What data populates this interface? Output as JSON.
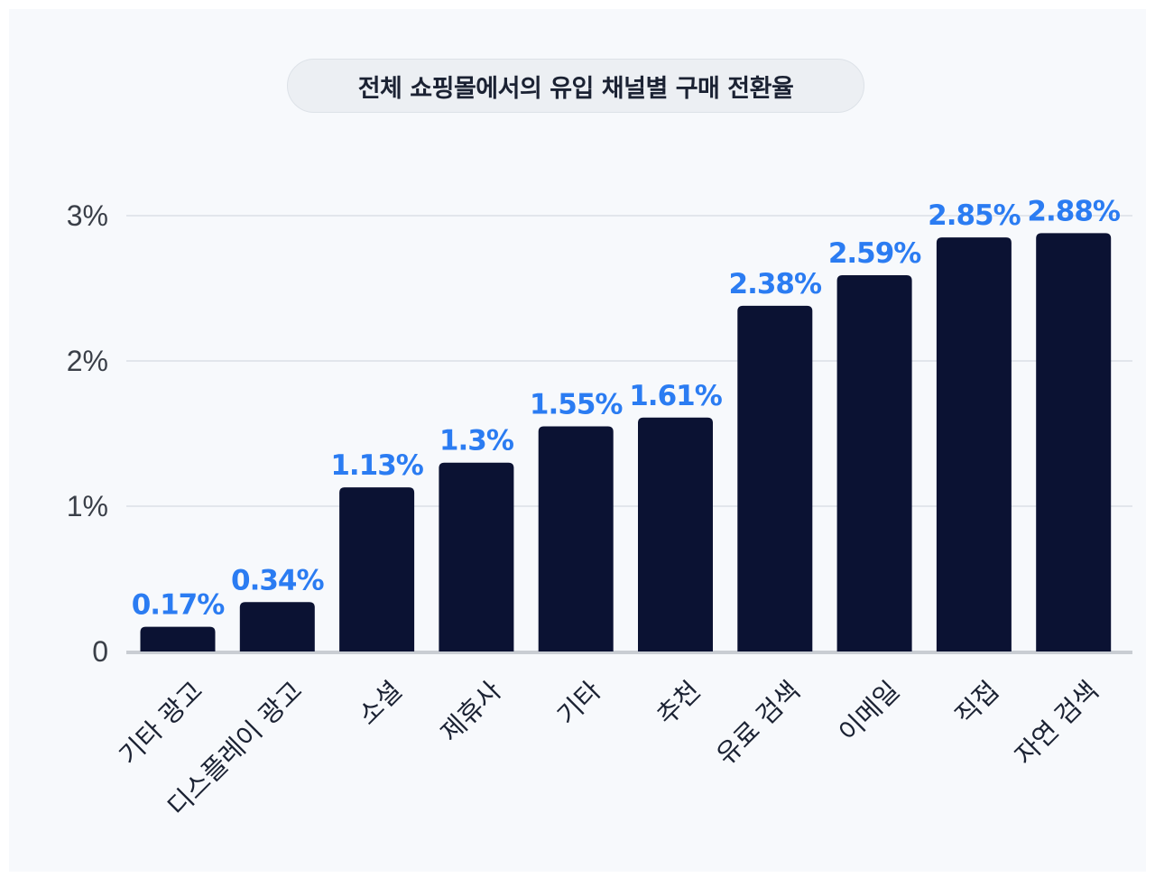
{
  "chart_data": {
    "type": "bar",
    "title": "전체 쇼핑몰에서의 유입 채널별 구매 전환율",
    "categories": [
      "기타 광고",
      "디스플레이 광고",
      "소셜",
      "제휴사",
      "기타",
      "추천",
      "유료 검색",
      "이메일",
      "직접",
      "자연 검색"
    ],
    "values": [
      0.17,
      0.34,
      1.13,
      1.3,
      1.55,
      1.61,
      2.38,
      2.59,
      2.85,
      2.88
    ],
    "value_labels": [
      "0.17%",
      "0.34%",
      "1.13%",
      "1.3%",
      "1.55%",
      "1.61%",
      "2.38%",
      "2.59%",
      "2.85%",
      "2.88%"
    ],
    "yticks": [
      {
        "value": 0,
        "label": "0"
      },
      {
        "value": 1,
        "label": "1%"
      },
      {
        "value": 2,
        "label": "2%"
      },
      {
        "value": 3,
        "label": "3%"
      }
    ],
    "ylim": [
      0,
      3
    ],
    "grid": true,
    "colors": {
      "bar": "#0b1233",
      "value_label": "#2b7cf2",
      "grid": "#e2e6ec",
      "baseline": "#c9cdd3"
    }
  }
}
